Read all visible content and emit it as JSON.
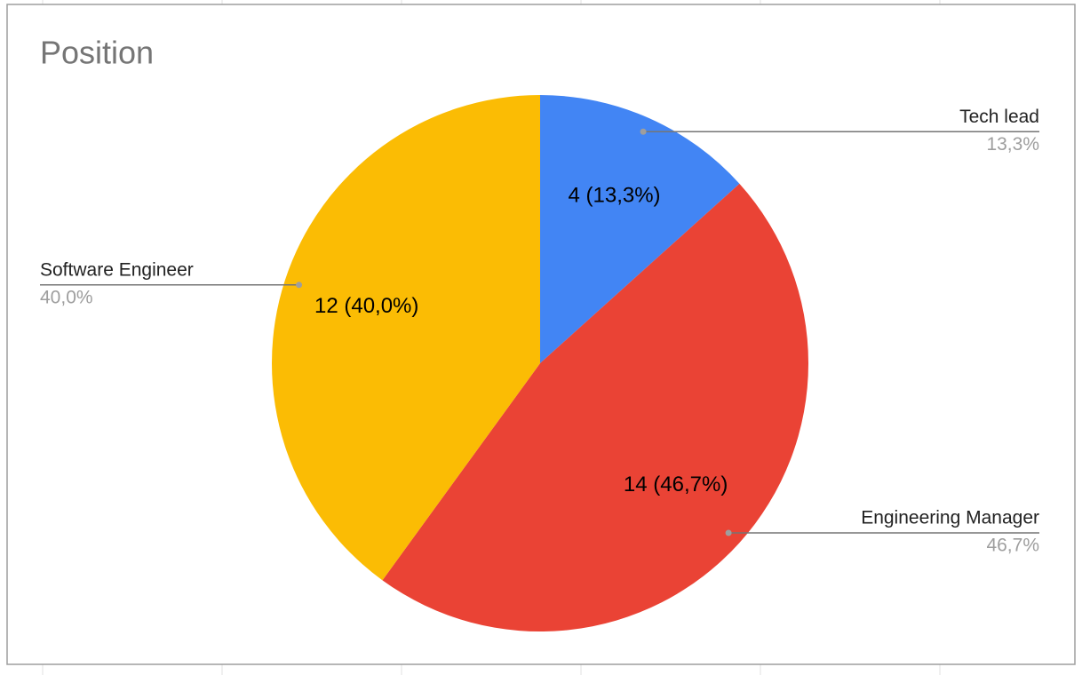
{
  "chart_data": {
    "type": "pie",
    "title": "Position",
    "categories": [
      "Tech lead",
      "Engineering Manager",
      "Software Engineer"
    ],
    "values": [
      4,
      14,
      12
    ],
    "value_labels": [
      "4 (13,3%)",
      "14 (46,7%)",
      "12 (40,0%)"
    ],
    "percent_labels": [
      "13,3%",
      "46,7%",
      "40,0%"
    ],
    "colors": [
      "#4285f4",
      "#ea4335",
      "#fbbc04"
    ]
  }
}
